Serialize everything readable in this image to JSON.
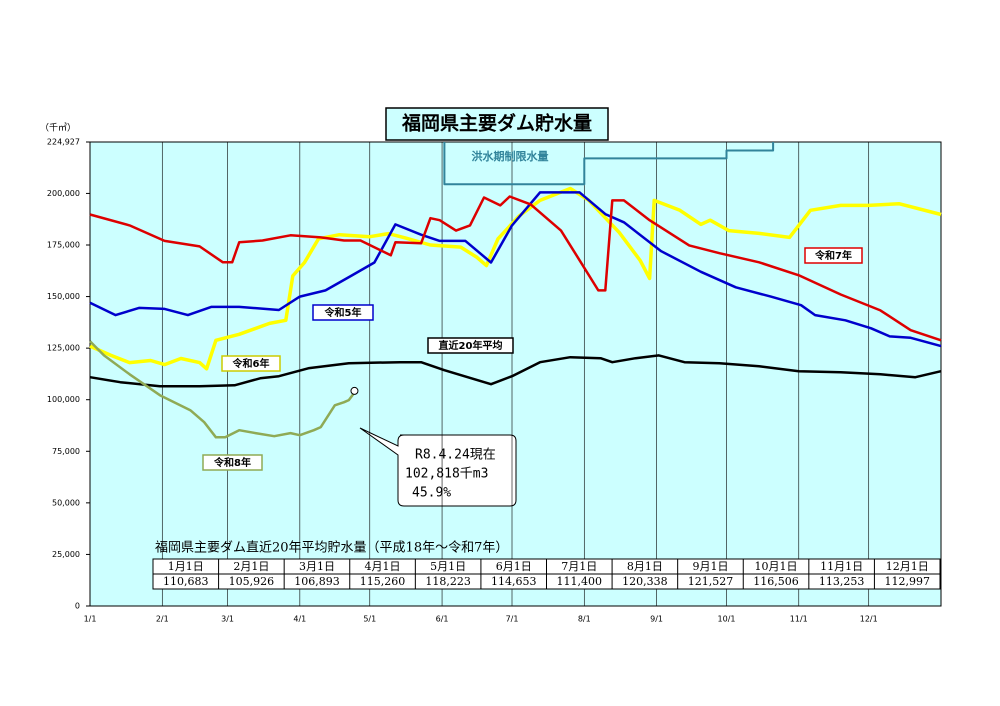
{
  "chart_data": {
    "type": "line",
    "title": "福岡県主要ダム貯水量",
    "y_unit": "（千㎥）",
    "xlim": [
      0,
      365
    ],
    "xticks": [
      {
        "value": 0,
        "label": "1/1"
      },
      {
        "value": 31,
        "label": "2/1"
      },
      {
        "value": 59,
        "label": "3/1"
      },
      {
        "value": 90,
        "label": "4/1"
      },
      {
        "value": 120,
        "label": "5/1"
      },
      {
        "value": 151,
        "label": "6/1"
      },
      {
        "value": 181,
        "label": "7/1"
      },
      {
        "value": 212,
        "label": "8/1"
      },
      {
        "value": 243,
        "label": "9/1"
      },
      {
        "value": 273,
        "label": "10/1"
      },
      {
        "value": 304,
        "label": "11/1"
      },
      {
        "value": 334,
        "label": "12/1"
      }
    ],
    "ylim": [
      0,
      224927
    ],
    "yticks": [
      0,
      {
        "value": 25000,
        "label": "25,000"
      },
      {
        "value": 50000,
        "label": "50,000"
      },
      {
        "value": 75000,
        "label": "75,000"
      },
      {
        "value": 100000,
        "label": "100,000"
      },
      {
        "value": 125000,
        "label": "125,000"
      },
      {
        "value": 150000,
        "label": "150,000"
      },
      {
        "value": 175000,
        "label": "175,000"
      },
      {
        "value": 200000,
        "label": "200,000"
      },
      {
        "value": 224927,
        "label": "224,927"
      }
    ],
    "grid": true,
    "series": [
      {
        "name": "令和5年",
        "color": "#0000cc",
        "x": [
          0,
          11,
          21,
          32,
          42,
          52,
          64,
          81,
          90,
          101,
          112,
          122,
          131,
          142,
          150,
          161,
          172,
          181,
          193,
          210,
          221,
          229,
          245,
          262,
          277,
          292,
          305,
          311,
          324,
          335,
          343,
          352,
          365
        ],
        "values": [
          147000,
          141000,
          144500,
          144000,
          141000,
          145000,
          145000,
          143500,
          150000,
          153000,
          160000,
          166500,
          185000,
          180000,
          177000,
          177000,
          166500,
          184500,
          200500,
          200500,
          190000,
          186000,
          172000,
          162000,
          154500,
          150000,
          145800,
          141000,
          138500,
          134600,
          130700,
          130000,
          126000
        ]
      },
      {
        "name": "令和6年",
        "color": "#ffff00",
        "x": [
          0,
          9,
          17,
          26,
          32,
          39,
          47,
          50,
          54,
          64,
          77,
          84,
          87,
          92,
          98,
          107,
          120,
          128,
          135,
          146,
          159,
          166,
          170,
          175,
          184,
          193,
          206,
          214,
          227,
          236,
          240,
          242,
          253,
          262,
          266,
          274,
          287,
          300,
          304,
          309,
          322,
          334,
          347,
          365
        ],
        "values": [
          126000,
          121500,
          118000,
          119000,
          117000,
          120000,
          118000,
          115000,
          128800,
          131700,
          137000,
          138500,
          160000,
          166500,
          178000,
          180000,
          179000,
          180500,
          178500,
          175000,
          174000,
          169000,
          165000,
          178000,
          189000,
          196600,
          202400,
          196600,
          181000,
          167500,
          158800,
          196600,
          191800,
          185000,
          187000,
          182000,
          180600,
          178700,
          184500,
          191800,
          194200,
          194200,
          195000,
          189800
        ]
      },
      {
        "name": "令和7年",
        "color": "#dd0000",
        "x": [
          0,
          17,
          32,
          47,
          57,
          61,
          64,
          74,
          86,
          99,
          109,
          116,
          129,
          131,
          142,
          146,
          150,
          157,
          163,
          169,
          176,
          180,
          189,
          202,
          210,
          218,
          221,
          224,
          229,
          240,
          257,
          270,
          287,
          304,
          322,
          339,
          352,
          365
        ],
        "values": [
          189800,
          184500,
          177000,
          174300,
          166600,
          166600,
          176300,
          177200,
          179700,
          178700,
          177200,
          177200,
          170000,
          176300,
          175800,
          188000,
          187000,
          182000,
          184500,
          198000,
          194200,
          198500,
          194700,
          182000,
          167600,
          153000,
          153000,
          196600,
          196600,
          187000,
          174800,
          171000,
          166600,
          160300,
          151000,
          143300,
          133700,
          128800
        ]
      },
      {
        "name": "直近20年平均",
        "color": "#000000",
        "x": [
          0,
          13,
          30,
          47,
          62,
          73,
          81,
          94,
          111,
          133,
          142,
          152,
          172,
          181,
          193,
          206,
          219,
          224,
          234,
          244,
          255,
          270,
          287,
          304,
          322,
          339,
          354,
          365
        ],
        "values": [
          110900,
          108500,
          106500,
          106500,
          107000,
          110400,
          111400,
          115300,
          117700,
          118200,
          118200,
          114300,
          107500,
          111400,
          118200,
          120600,
          120100,
          118200,
          120100,
          121500,
          118200,
          117700,
          116200,
          113800,
          113300,
          112300,
          110900,
          113800
        ]
      },
      {
        "name": "令和8年",
        "color": "#8faa55",
        "x": [
          0,
          6,
          17,
          30,
          43,
          49,
          54,
          58,
          64,
          71,
          79,
          86,
          90,
          96,
          99,
          105,
          109,
          111,
          113
        ],
        "values": [
          128300,
          121500,
          112300,
          102200,
          94900,
          89100,
          81800,
          81800,
          85200,
          83800,
          82300,
          83800,
          82800,
          85200,
          86700,
          97300,
          98800,
          99800,
          102818
        ]
      },
      {
        "name": "洪水期制限水量",
        "color": "#31849b",
        "x": [
          152,
          152,
          212,
          212,
          273,
          273,
          293,
          293
        ],
        "values": [
          224927,
          204400,
          204400,
          217000,
          217000,
          220800,
          220800,
          224927
        ]
      }
    ],
    "annotations": [
      "R8.4.24現在",
      "102,818千m3",
      "45.9%"
    ]
  },
  "table": {
    "title": "福岡県主要ダム直近20年平均貯水量（平成18年～令和7年）",
    "headers": [
      "1月1日",
      "2月1日",
      "3月1日",
      "4月1日",
      "5月1日",
      "6月1日",
      "7月1日",
      "8月1日",
      "9月1日",
      "10月1日",
      "11月1日",
      "12月1日"
    ],
    "values": [
      "110,683",
      "105,926",
      "106,893",
      "115,260",
      "118,223",
      "114,653",
      "111,400",
      "120,338",
      "121,527",
      "116,506",
      "113,253",
      "112,997"
    ]
  }
}
